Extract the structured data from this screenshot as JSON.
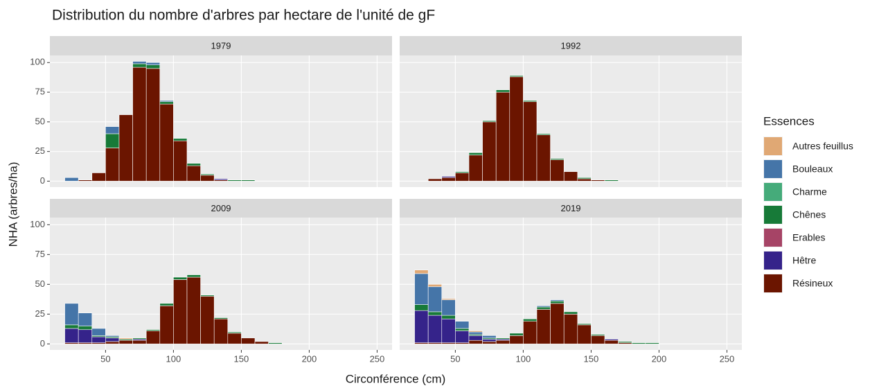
{
  "chart_data": {
    "type": "histogram",
    "title": "Distribution du nombre d'arbres par hectare de l'unité de gF",
    "xlabel": "Circonférence (cm)",
    "ylabel": "NHA (arbres/ha)",
    "legend_title": "Essences",
    "bins": [
      20,
      30,
      40,
      50,
      60,
      70,
      80,
      90,
      100,
      110,
      120,
      130,
      140,
      150,
      160,
      170,
      180,
      190,
      200
    ],
    "xlim": [
      9,
      261
    ],
    "xticks": [
      50,
      100,
      150,
      200,
      250
    ],
    "ylim": [
      -5,
      106
    ],
    "yticks": [
      0,
      25,
      50,
      75,
      100
    ],
    "series": [
      {
        "name": "Autres feuillus",
        "color": "#e0a874"
      },
      {
        "name": "Bouleaux",
        "color": "#4575a8"
      },
      {
        "name": "Charme",
        "color": "#45ab7a"
      },
      {
        "name": "Chênes",
        "color": "#177a38"
      },
      {
        "name": "Erables",
        "color": "#a64466"
      },
      {
        "name": "Hêtre",
        "color": "#35238a"
      },
      {
        "name": "Résineux",
        "color": "#6b1500"
      }
    ],
    "facets": [
      {
        "label": "1979",
        "values": [
          [
            0,
            0,
            0,
            0,
            0,
            0,
            0,
            0,
            0,
            0,
            0,
            0,
            0,
            0,
            0,
            0,
            0,
            0
          ],
          [
            3,
            0,
            0,
            6,
            0,
            2,
            2,
            1,
            0,
            0,
            0,
            0,
            0,
            0,
            0,
            0,
            0,
            0
          ],
          [
            0,
            0,
            0,
            0,
            0,
            0,
            0,
            0,
            0,
            0,
            0,
            0,
            0,
            0,
            0,
            0,
            0,
            0
          ],
          [
            0,
            0,
            0,
            12,
            0,
            3,
            3,
            2,
            2,
            2,
            1,
            0,
            1,
            1,
            0,
            0,
            0,
            0
          ],
          [
            0,
            0,
            0,
            0,
            0,
            0,
            0,
            0,
            0,
            0,
            0,
            0,
            0,
            0,
            0,
            0,
            0,
            0
          ],
          [
            0,
            0,
            0,
            0,
            0,
            0,
            0,
            0,
            0,
            0,
            0,
            1,
            0,
            0,
            0,
            0,
            0,
            0
          ],
          [
            0,
            1,
            7,
            28,
            56,
            96,
            95,
            65,
            34,
            13,
            5,
            1,
            0,
            0,
            0,
            0,
            0,
            0
          ]
        ]
      },
      {
        "label": "1992",
        "values": [
          [
            0,
            0,
            0,
            0,
            0,
            0,
            0,
            0,
            0,
            0,
            0,
            0,
            0,
            0,
            0,
            0,
            0,
            0
          ],
          [
            0,
            0,
            0,
            0,
            0,
            0,
            0,
            0,
            0,
            0,
            0,
            0,
            0,
            0,
            0,
            0,
            0,
            0
          ],
          [
            0,
            0,
            0,
            0,
            0,
            0,
            0,
            0,
            0,
            0,
            0,
            0,
            0,
            0,
            0,
            0,
            0,
            0
          ],
          [
            0,
            0,
            0,
            1,
            2,
            1,
            2,
            1,
            1,
            1,
            1,
            0,
            1,
            0,
            1,
            0,
            0,
            0
          ],
          [
            0,
            0,
            0,
            0,
            0,
            0,
            0,
            0,
            0,
            0,
            0,
            0,
            0,
            0,
            0,
            0,
            0,
            0
          ],
          [
            0,
            0,
            1,
            0,
            0,
            0,
            0,
            0,
            0,
            0,
            0,
            0,
            0,
            0,
            0,
            0,
            0,
            0
          ],
          [
            0,
            2,
            3,
            7,
            22,
            50,
            75,
            88,
            67,
            39,
            18,
            8,
            2,
            1,
            0,
            0,
            0,
            0
          ]
        ]
      },
      {
        "label": "2009",
        "values": [
          [
            0,
            0,
            0,
            0,
            1,
            0,
            0,
            0,
            0,
            0,
            0,
            0,
            0,
            0,
            0,
            0,
            0,
            0
          ],
          [
            18,
            11,
            6,
            1,
            0,
            0,
            0,
            0,
            0,
            0,
            0,
            0,
            0,
            0,
            0,
            0,
            0,
            0
          ],
          [
            0,
            0,
            0,
            0,
            0,
            0,
            0,
            0,
            0,
            0,
            0,
            0,
            0,
            0,
            0,
            0,
            0,
            0
          ],
          [
            3,
            3,
            1,
            1,
            1,
            1,
            1,
            2,
            2,
            2,
            1,
            1,
            1,
            0,
            0,
            1,
            0,
            0
          ],
          [
            0,
            0,
            0,
            0,
            0,
            0,
            0,
            0,
            0,
            0,
            0,
            0,
            0,
            0,
            0,
            0,
            0,
            0
          ],
          [
            12,
            11,
            5,
            3,
            0,
            1,
            0,
            0,
            0,
            0,
            0,
            0,
            0,
            0,
            0,
            0,
            0,
            0
          ],
          [
            1,
            1,
            1,
            2,
            3,
            3,
            11,
            32,
            54,
            56,
            40,
            21,
            9,
            5,
            2,
            0,
            0,
            0
          ]
        ]
      },
      {
        "label": "2019",
        "values": [
          [
            3,
            2,
            1,
            0,
            1,
            0,
            0,
            0,
            0,
            0,
            0,
            0,
            0,
            0,
            0,
            0,
            0,
            0
          ],
          [
            26,
            21,
            13,
            6,
            2,
            2,
            0,
            0,
            0,
            1,
            1,
            0,
            0,
            0,
            0,
            0,
            0,
            0
          ],
          [
            0,
            0,
            0,
            0,
            0,
            0,
            0,
            0,
            0,
            0,
            0,
            0,
            0,
            0,
            0,
            0,
            0,
            0
          ],
          [
            5,
            3,
            3,
            2,
            1,
            1,
            1,
            2,
            2,
            2,
            2,
            2,
            1,
            1,
            0,
            1,
            1,
            1
          ],
          [
            0,
            0,
            0,
            0,
            0,
            0,
            0,
            0,
            0,
            0,
            0,
            0,
            0,
            0,
            0,
            0,
            0,
            0
          ],
          [
            27,
            23,
            20,
            10,
            4,
            2,
            1,
            0,
            0,
            0,
            0,
            0,
            0,
            0,
            1,
            0,
            0,
            0
          ],
          [
            1,
            1,
            1,
            1,
            3,
            2,
            3,
            7,
            19,
            29,
            34,
            25,
            16,
            7,
            3,
            1,
            0,
            0
          ]
        ]
      }
    ]
  }
}
